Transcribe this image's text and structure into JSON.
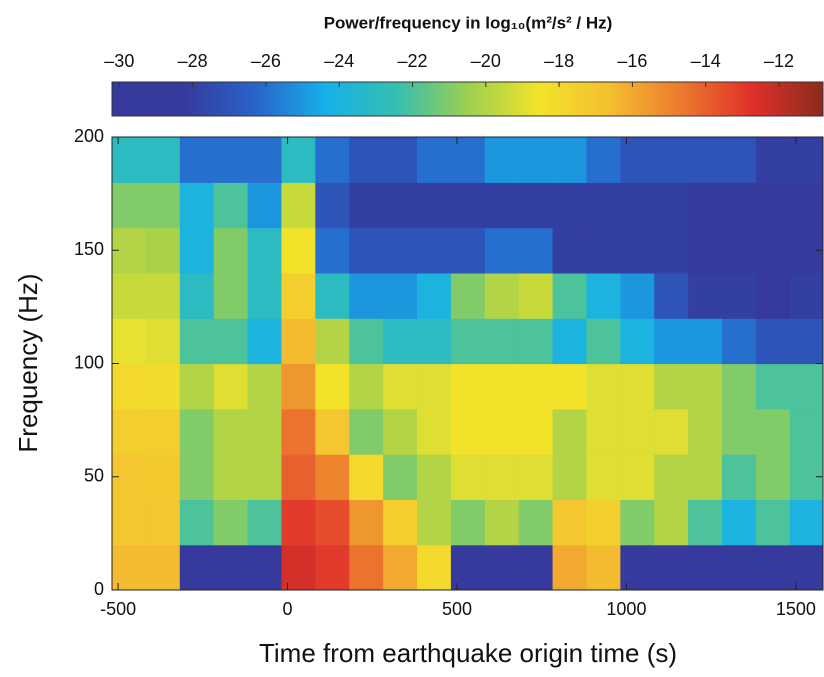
{
  "chart_data": {
    "type": "heatmap",
    "title": "Power/frequency in log₁₀(m²/s² / Hz)",
    "xlabel": "Time from earthquake origin time (s)",
    "ylabel": "Frequency (Hz)",
    "x": [
      -468,
      -368,
      -268,
      -168,
      -68,
      32,
      132,
      232,
      332,
      432,
      532,
      632,
      732,
      832,
      932,
      1032,
      1132,
      1232,
      1332,
      1432,
      1532
    ],
    "y": [
      10,
      30,
      50,
      70,
      90,
      110,
      130,
      150,
      170,
      190
    ],
    "z": [
      [
        -16.5,
        -16.5,
        -29,
        -29,
        -29,
        -12.5,
        -13,
        -14.5,
        -16,
        -18,
        -29,
        -29,
        -29,
        -16,
        -16.5,
        -29,
        -29,
        -29,
        -29,
        -29,
        -29
      ],
      [
        -17,
        -17,
        -22,
        -21,
        -22,
        -13,
        -13.5,
        -15.5,
        -17.5,
        -20,
        -21,
        -20,
        -21,
        -17,
        -17.5,
        -21,
        -20,
        -22,
        -24,
        -22,
        -24
      ],
      [
        -17,
        -17.2,
        -21,
        -20,
        -20,
        -14,
        -15,
        -18,
        -21,
        -20,
        -19,
        -19,
        -19,
        -20,
        -19,
        -19,
        -20,
        -20,
        -22,
        -21,
        -22
      ],
      [
        -17.5,
        -17.5,
        -21,
        -20,
        -20,
        -14.5,
        -17,
        -21,
        -20,
        -19,
        -18.5,
        -18.5,
        -18.5,
        -20,
        -19,
        -19,
        -19,
        -20,
        -21,
        -21,
        -22
      ],
      [
        -18,
        -18.2,
        -20,
        -19,
        -20,
        -15.5,
        -18.5,
        -20,
        -19,
        -19,
        -18.5,
        -18.5,
        -18.5,
        -18.5,
        -19,
        -19,
        -20,
        -20,
        -21,
        -22,
        -22
      ],
      [
        -18.8,
        -19,
        -22,
        -22,
        -24,
        -16.5,
        -20,
        -22,
        -23,
        -23,
        -22,
        -22,
        -22,
        -24,
        -22,
        -24,
        -25,
        -25,
        -26,
        -27,
        -27
      ],
      [
        -19.5,
        -19.5,
        -23,
        -21,
        -23,
        -17.5,
        -23,
        -25,
        -25,
        -24,
        -21,
        -20,
        -19.5,
        -22,
        -24,
        -25,
        -27,
        -28,
        -28,
        -29,
        -28
      ],
      [
        -20,
        -20.2,
        -24,
        -21,
        -23,
        -18.5,
        -26,
        -27,
        -27,
        -27,
        -27,
        -26,
        -26,
        -28,
        -28,
        -28,
        -28,
        -29,
        -29,
        -29,
        -29
      ],
      [
        -21,
        -21,
        -24,
        -22,
        -25,
        -19.5,
        -27,
        -28,
        -28,
        -28,
        -28,
        -28,
        -28,
        -28,
        -28,
        -28,
        -28,
        -29,
        -29,
        -29,
        -29
      ],
      [
        -23,
        -23,
        -26,
        -26,
        -26,
        -23,
        -26,
        -27,
        -27,
        -26,
        -26,
        -25,
        -25,
        -25,
        -26,
        -27,
        -27,
        -27,
        -27,
        -28,
        -28
      ]
    ],
    "xlim": [
      -518,
      1580
    ],
    "ylim": [
      0,
      200
    ],
    "xticks": [
      -500,
      0,
      500,
      1000,
      1500
    ],
    "yticks": [
      0,
      50,
      100,
      150,
      200
    ],
    "clim": [
      -30.2,
      -10.8
    ],
    "cticks": [
      {
        "value": -30,
        "label": "–30"
      },
      {
        "value": -28,
        "label": "–28"
      },
      {
        "value": -26,
        "label": "–26"
      },
      {
        "value": -24,
        "label": "–24"
      },
      {
        "value": -22,
        "label": "–22"
      },
      {
        "value": -20,
        "label": "–20"
      },
      {
        "value": -18,
        "label": "–18"
      },
      {
        "value": -16,
        "label": "–16"
      },
      {
        "value": -14,
        "label": "–14"
      },
      {
        "value": -12,
        "label": "–12"
      }
    ],
    "colormap": [
      "#353a9c",
      "#353a9c",
      "#2a62c8",
      "#16b0ea",
      "#35bfb0",
      "#9ccf50",
      "#f2e32a",
      "#f4bf30",
      "#ec7a2e",
      "#e0302a",
      "#8b2b1e"
    ]
  }
}
